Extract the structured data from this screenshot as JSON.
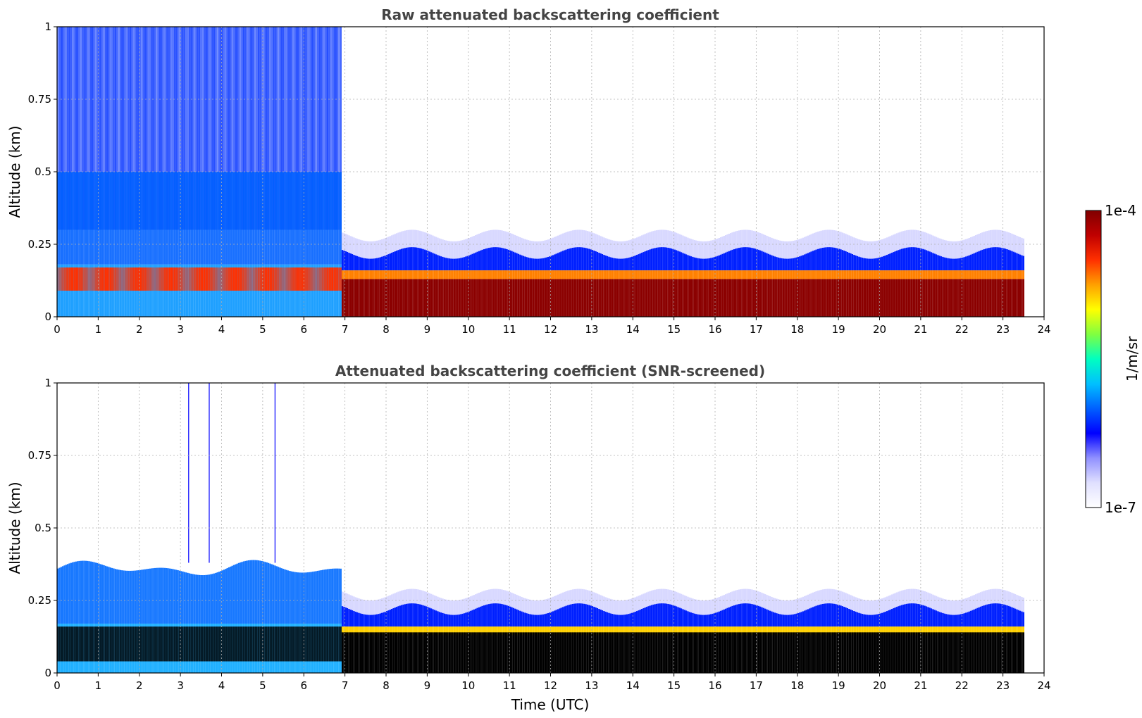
{
  "chart_data": [
    {
      "type": "heatmap",
      "title": "Raw attenuated backscattering coefficient",
      "xlabel": "",
      "ylabel": "Altitude (km)",
      "xlim": [
        0,
        24
      ],
      "ylim": [
        0,
        1
      ],
      "xticks": [
        "0",
        "1",
        "2",
        "3",
        "4",
        "5",
        "6",
        "7",
        "8",
        "9",
        "10",
        "11",
        "12",
        "13",
        "14",
        "15",
        "16",
        "17",
        "18",
        "19",
        "20",
        "21",
        "22",
        "23",
        "24"
      ],
      "yticks": [
        "0",
        "0.25",
        "0.5",
        "0.75",
        "1"
      ],
      "data_end_time": 23.5,
      "grid": true,
      "features": {
        "dense_layer_altitude_km": [
          0.03,
          0.18
        ],
        "strong_signal_layer_after_7utc_km": [
          0.0,
          0.15
        ],
        "noise_region_until_6_8utc_km": [
          0.3,
          1.0
        ],
        "boundary_layer_top_after_7utc_km": 0.22
      }
    },
    {
      "type": "heatmap",
      "title": "Attenuated backscattering coefficient (SNR-screened)",
      "xlabel": "Time (UTC)",
      "ylabel": "Altitude (km)",
      "xlim": [
        0,
        24
      ],
      "ylim": [
        0,
        1
      ],
      "xticks": [
        "0",
        "1",
        "2",
        "3",
        "4",
        "5",
        "6",
        "7",
        "8",
        "9",
        "10",
        "11",
        "12",
        "13",
        "14",
        "15",
        "16",
        "17",
        "18",
        "19",
        "20",
        "21",
        "22",
        "23",
        "24"
      ],
      "yticks": [
        "0",
        "0.25",
        "0.5",
        "0.75",
        "1"
      ],
      "data_end_time": 23.5,
      "grid": true,
      "features": {
        "screened_black_layer_km": [
          0.02,
          0.17
        ],
        "aerosol_top_before_7utc_km": 0.38,
        "boundary_layer_top_after_7utc_km": 0.22,
        "spike_times_utc": [
          3.2,
          3.7,
          5.3
        ]
      }
    }
  ],
  "colorbar": {
    "max_label": "1e-4",
    "min_label": "1e-7",
    "label": "1/m/sr",
    "colors": [
      "#ffffff",
      "#e0e0ff",
      "#9090ff",
      "#0000ff",
      "#0060ff",
      "#00c0ff",
      "#00ffc0",
      "#80ff40",
      "#ffff00",
      "#ffa000",
      "#ff3000",
      "#c00000",
      "#800000"
    ]
  }
}
